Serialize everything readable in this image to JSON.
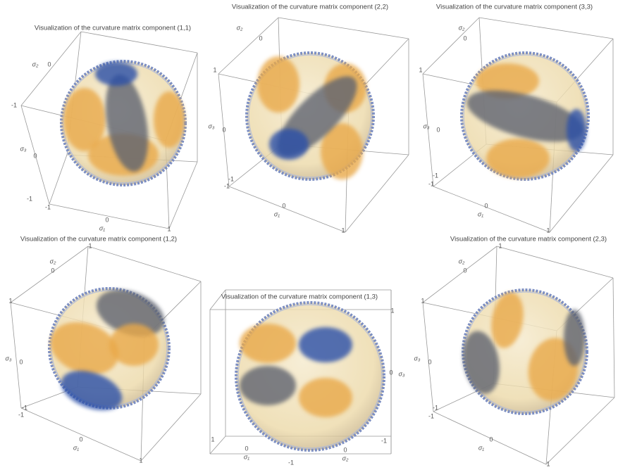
{
  "panels": [
    {
      "title": "Visualization of the curvature matrix component (1,1)",
      "labels": [
        "σ₂",
        "0",
        "-1",
        "σ₃",
        "0",
        "-1",
        "-1",
        "0",
        "σ₁",
        "1"
      ]
    },
    {
      "title": "Visualization of the curvature matrix component (2,2)",
      "labels": [
        "σ₂",
        "0",
        "1",
        "σ₃",
        "0",
        "-1",
        "-1",
        "0",
        "σ₁",
        "1"
      ]
    },
    {
      "title": "Visualization of the curvature matrix component (3,3)",
      "labels": [
        "σ₂",
        "0",
        "1",
        "σ₃",
        "0",
        "-1",
        "-1",
        "0",
        "σ₁",
        "1"
      ]
    },
    {
      "title": "Visualization of the curvature matrix component (1,2)",
      "labels": [
        "σ₂",
        "0",
        "1",
        "1",
        "σ₃",
        "0",
        "-1",
        "-1",
        "0",
        "σ₁",
        "1"
      ]
    },
    {
      "title": "Visualization of the curvature matrix component (1,3)",
      "labels": [
        "1",
        "0",
        "σ₁",
        "-1",
        "0",
        "σ₂",
        "-1",
        "1",
        "0",
        "σ₃"
      ]
    },
    {
      "title": "Visualization of the curvature matrix component (2,3)",
      "labels": [
        "σ₂",
        "0",
        "1",
        "1",
        "σ₃",
        "0",
        "-1",
        "-1",
        "0",
        "σ₁",
        "1"
      ]
    }
  ]
}
